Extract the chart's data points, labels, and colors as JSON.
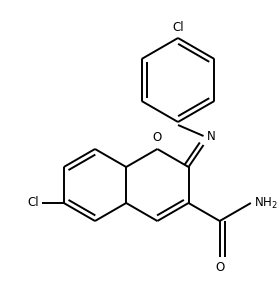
{
  "background_color": "#ffffff",
  "line_color": "#000000",
  "line_width": 1.4,
  "font_size": 8.5,
  "figsize": [
    2.8,
    2.98
  ],
  "dpi": 100,
  "xlim": [
    0,
    280
  ],
  "ylim": [
    0,
    298
  ]
}
